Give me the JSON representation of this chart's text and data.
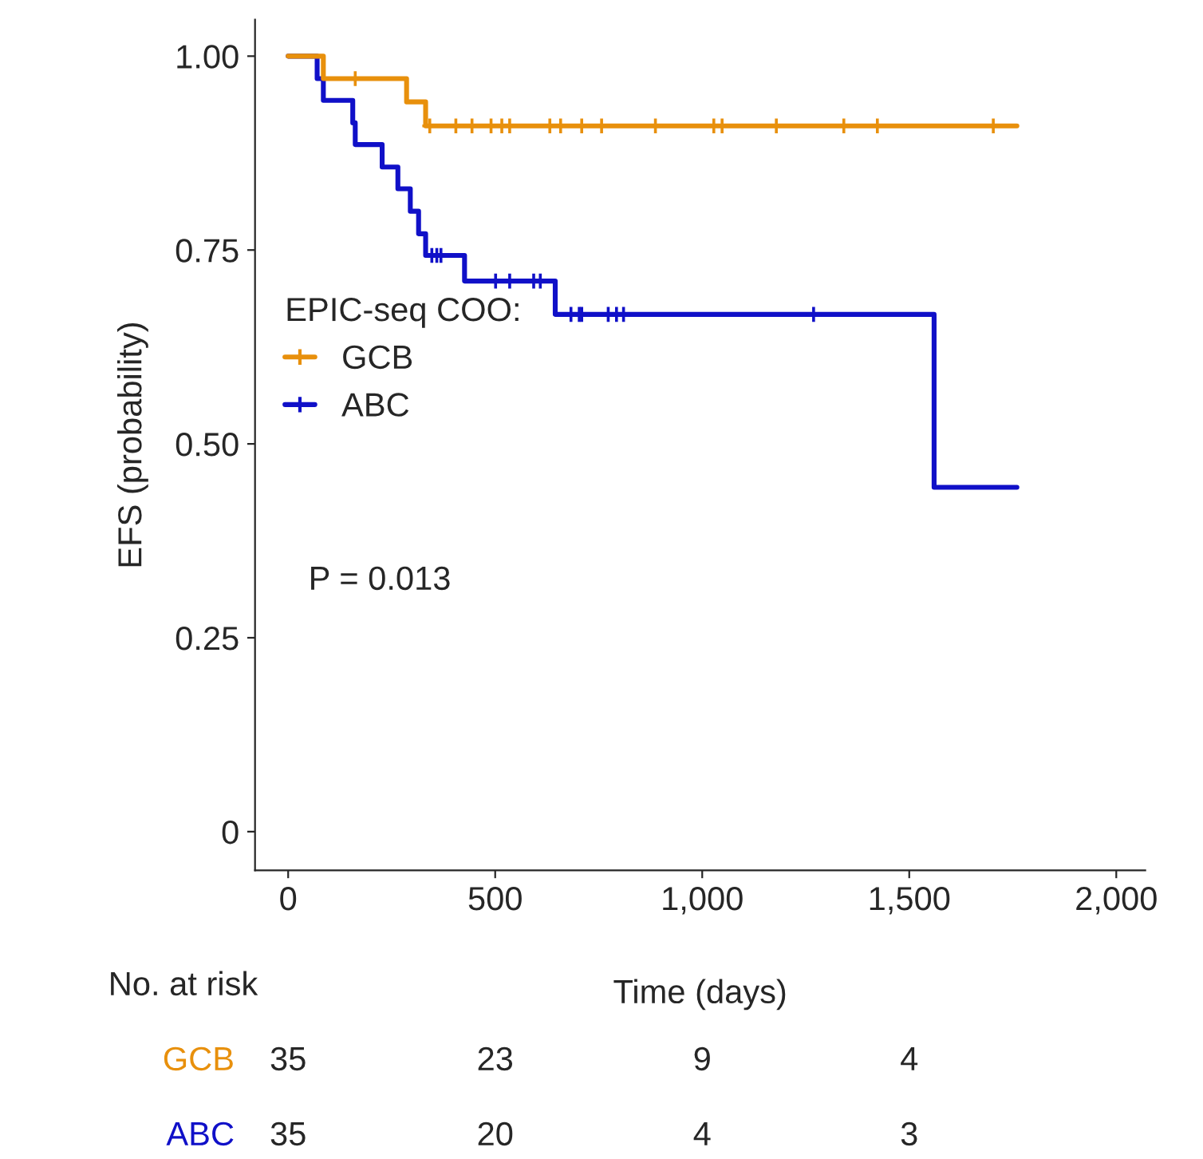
{
  "chart_data": {
    "type": "step",
    "xlabel": "Time (days)",
    "ylabel": "EFS (probability)",
    "legend_title": "EPIC-seq COO:",
    "series": [
      {
        "name": "GCB",
        "color": "#e8900c",
        "x": [
          0,
          85,
          286,
          332,
          1760
        ],
        "values": [
          1.0,
          0.971,
          0.941,
          0.91,
          0.91
        ]
      },
      {
        "name": "ABC",
        "color": "#1010c8",
        "x": [
          0,
          70,
          85,
          156,
          162,
          227,
          265,
          295,
          315,
          332,
          426,
          645,
          1560,
          1760
        ],
        "values": [
          1.0,
          0.971,
          0.943,
          0.914,
          0.886,
          0.857,
          0.829,
          0.8,
          0.771,
          0.743,
          0.71,
          0.667,
          0.444,
          0.444
        ]
      },
      {
        "type": "scatter",
        "color": "#e8900c",
        "marker": "cross",
        "x": [
          162,
          342,
          405,
          444,
          490,
          516,
          535,
          632,
          658,
          709,
          757,
          887,
          1028,
          1048,
          1179,
          1342,
          1423,
          1703
        ],
        "values": [
          0.971,
          0.91,
          0.91,
          0.91,
          0.91,
          0.91,
          0.91,
          0.91,
          0.91,
          0.91,
          0.91,
          0.91,
          0.91,
          0.91,
          0.91,
          0.91,
          0.91,
          0.91
        ]
      },
      {
        "type": "scatter",
        "color": "#1010c8",
        "marker": "cross",
        "x": [
          347,
          359,
          369,
          501,
          535,
          593,
          609,
          683,
          703,
          709,
          773,
          793,
          810,
          1269
        ],
        "values": [
          0.743,
          0.743,
          0.743,
          0.71,
          0.71,
          0.71,
          0.71,
          0.667,
          0.667,
          0.667,
          0.667,
          0.667,
          0.667,
          0.667
        ]
      }
    ],
    "xlim": [
      -80,
      2070
    ],
    "xticks": [
      0,
      500,
      {
        "value": 1000,
        "label": "1,000"
      },
      {
        "value": 1500,
        "label": "1,500"
      },
      {
        "value": 2000,
        "label": "2,000"
      }
    ],
    "ylim": [
      -0.05,
      1.047
    ],
    "yticks": [
      0,
      {
        "value": 0.25,
        "label": "0.25"
      },
      {
        "value": 0.5,
        "label": "0.50"
      },
      {
        "value": 0.75,
        "label": "0.75"
      },
      {
        "value": 1.0,
        "label": "1.00"
      }
    ],
    "grid": false,
    "legend": "left",
    "line_style": "solid",
    "annotations": [
      "P = 0.013",
      "No. at risk",
      "GCB",
      "35",
      "23",
      "9",
      "4",
      "ABC",
      "35",
      "20",
      "4",
      "3"
    ]
  }
}
